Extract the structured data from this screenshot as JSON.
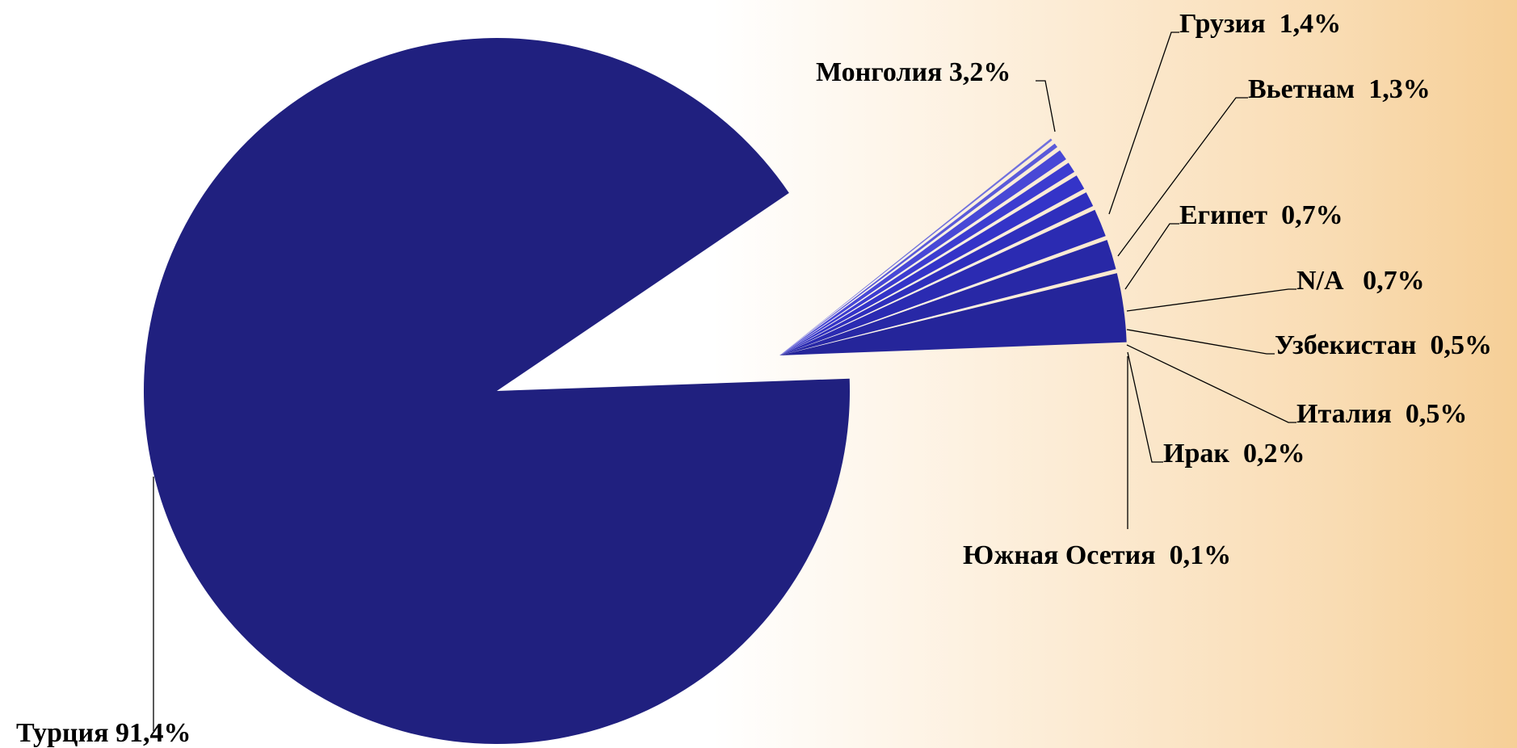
{
  "chart_data": {
    "type": "pie",
    "title": "",
    "slices": [
      {
        "label": "Турция",
        "value": 91.4,
        "text": "Турция 91,4%",
        "color": "#20207f"
      },
      {
        "label": "Монголия",
        "value": 3.2,
        "text": "Монголия 3,2%",
        "color": "#25259a"
      },
      {
        "label": "Грузия",
        "value": 1.4,
        "text": "Грузия  1,4%",
        "color": "#2828a6"
      },
      {
        "label": "Вьетнам",
        "value": 1.3,
        "text": "Вьетнам  1,3%",
        "color": "#2b2bb2"
      },
      {
        "label": "Египет",
        "value": 0.7,
        "text": "Египет  0,7%",
        "color": "#2f2fbd"
      },
      {
        "label": "N/A",
        "value": 0.7,
        "text": "N/A   0,7%",
        "color": "#3434c8"
      },
      {
        "label": "Узбекистан",
        "value": 0.5,
        "text": "Узбекистан  0,5%",
        "color": "#3c3cd0"
      },
      {
        "label": "Италия",
        "value": 0.5,
        "text": "Италия  0,5%",
        "color": "#4848d6"
      },
      {
        "label": "Ирак",
        "value": 0.2,
        "text": "Ирак  0,2%",
        "color": "#5a5ada"
      },
      {
        "label": "Южная Осетия",
        "value": 0.1,
        "text": "Южная Осетия  0,1%",
        "color": "#7070de"
      }
    ],
    "legend": "none",
    "data_labels": "outside with leader lines"
  }
}
